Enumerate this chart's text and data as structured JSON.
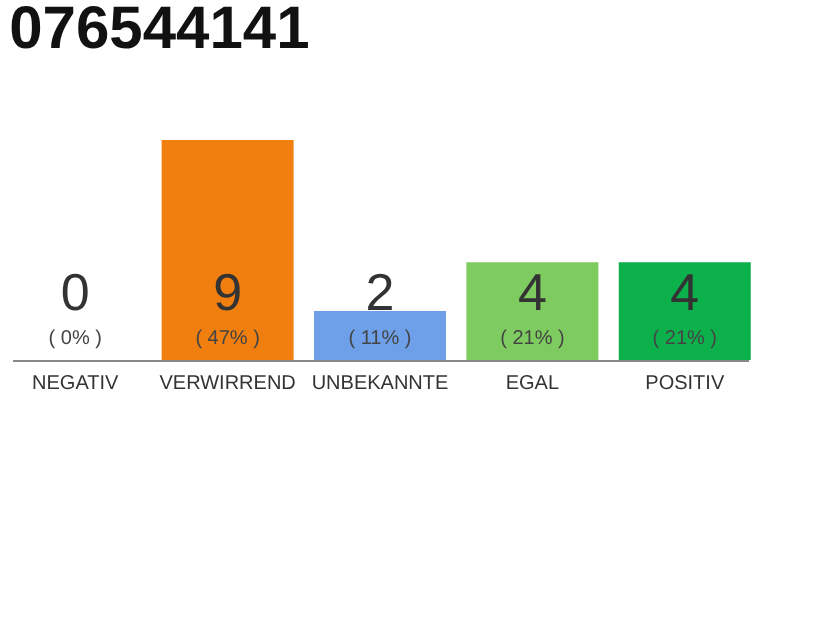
{
  "chart_data": {
    "type": "bar",
    "title": "076544141",
    "categories": [
      "NEGATIV",
      "VERWIRREND",
      "UNBEKANNTE",
      "EGAL",
      "POSITIV"
    ],
    "values": [
      0,
      9,
      2,
      4,
      4
    ],
    "colors": [
      "#cccccc",
      "#f07f0f",
      "#6ea0ea",
      "#7ecb5f",
      "#0db14b"
    ],
    "data_labels": true,
    "annotations": [
      "( 0% )",
      "( 47% )",
      "( 11% )",
      "( 21% )",
      "( 21% )"
    ]
  }
}
